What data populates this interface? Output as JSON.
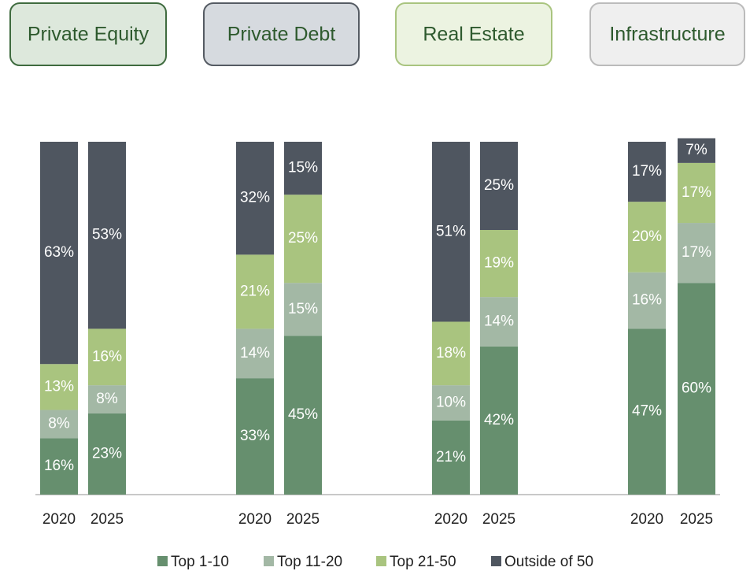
{
  "chart_data": {
    "type": "bar",
    "stacked": true,
    "groups": [
      "Private Equity",
      "Private Debt",
      "Real Estate",
      "Infrastructure"
    ],
    "categories": [
      "2020",
      "2025",
      "2020",
      "2025",
      "2020",
      "2025",
      "2020",
      "2025"
    ],
    "ylim": [
      0,
      100
    ],
    "series": [
      {
        "name": "Top 1-10",
        "color": "#668f6e",
        "values": [
          16,
          23,
          33,
          45,
          21,
          42,
          47,
          60
        ],
        "value_labels": [
          "16%",
          "23%",
          "33%",
          "45%",
          "21%",
          "42%",
          "47%",
          "60%"
        ]
      },
      {
        "name": "Top 11-20",
        "color": "#a3b8a5",
        "values": [
          8,
          8,
          14,
          15,
          10,
          14,
          16,
          17
        ],
        "value_labels": [
          "8%",
          "8%",
          "14%",
          "15%",
          "10%",
          "14%",
          "16%",
          "17%"
        ]
      },
      {
        "name": "Top 21-50",
        "color": "#a9c47f",
        "values": [
          13,
          16,
          21,
          25,
          18,
          19,
          20,
          17
        ],
        "value_labels": [
          "13%",
          "16%",
          "21%",
          "25%",
          "18%",
          "19%",
          "20%",
          "17%"
        ]
      },
      {
        "name": "Outside of 50",
        "color": "#4f5660",
        "values": [
          63,
          53,
          32,
          15,
          51,
          25,
          17,
          7
        ],
        "value_labels": [
          "63%",
          "53%",
          "32%",
          "15%",
          "51%",
          "25%",
          "17%",
          "7%"
        ]
      }
    ]
  }
}
